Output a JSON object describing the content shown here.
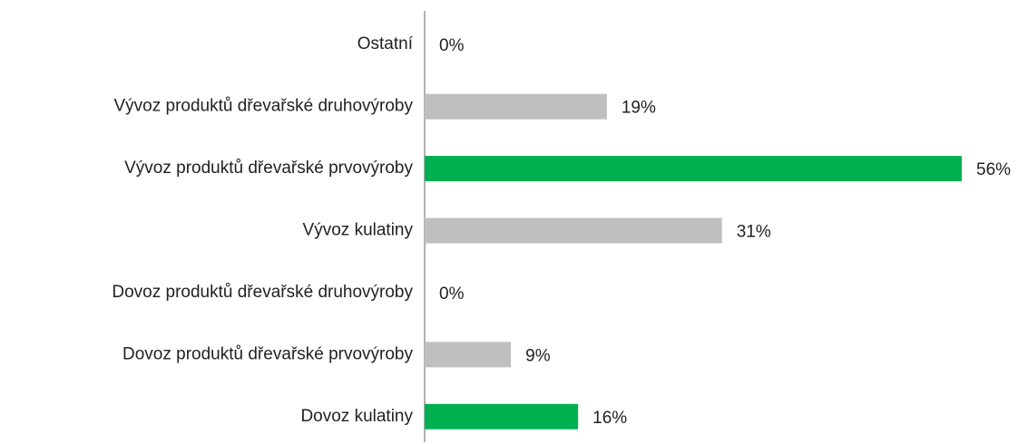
{
  "chart_data": {
    "type": "bar",
    "orientation": "horizontal",
    "categories": [
      "Ostatní",
      "Vývoz produktů dřevařské druhovýroby",
      "Vývoz produktů dřevařské prvovýroby",
      "Vývoz kulatiny",
      "Dovoz produktů dřevařské druhovýroby",
      "Dovoz produktů dřevařské prvovýroby",
      "Dovoz kulatiny"
    ],
    "values": [
      0,
      19,
      56,
      31,
      0,
      9,
      16
    ],
    "value_labels": [
      "0%",
      "19%",
      "56%",
      "31%",
      "0%",
      "9%",
      "16%"
    ],
    "colors": [
      "#bfbfbf",
      "#bfbfbf",
      "#00b050",
      "#bfbfbf",
      "#bfbfbf",
      "#bfbfbf",
      "#00b050"
    ]
  }
}
